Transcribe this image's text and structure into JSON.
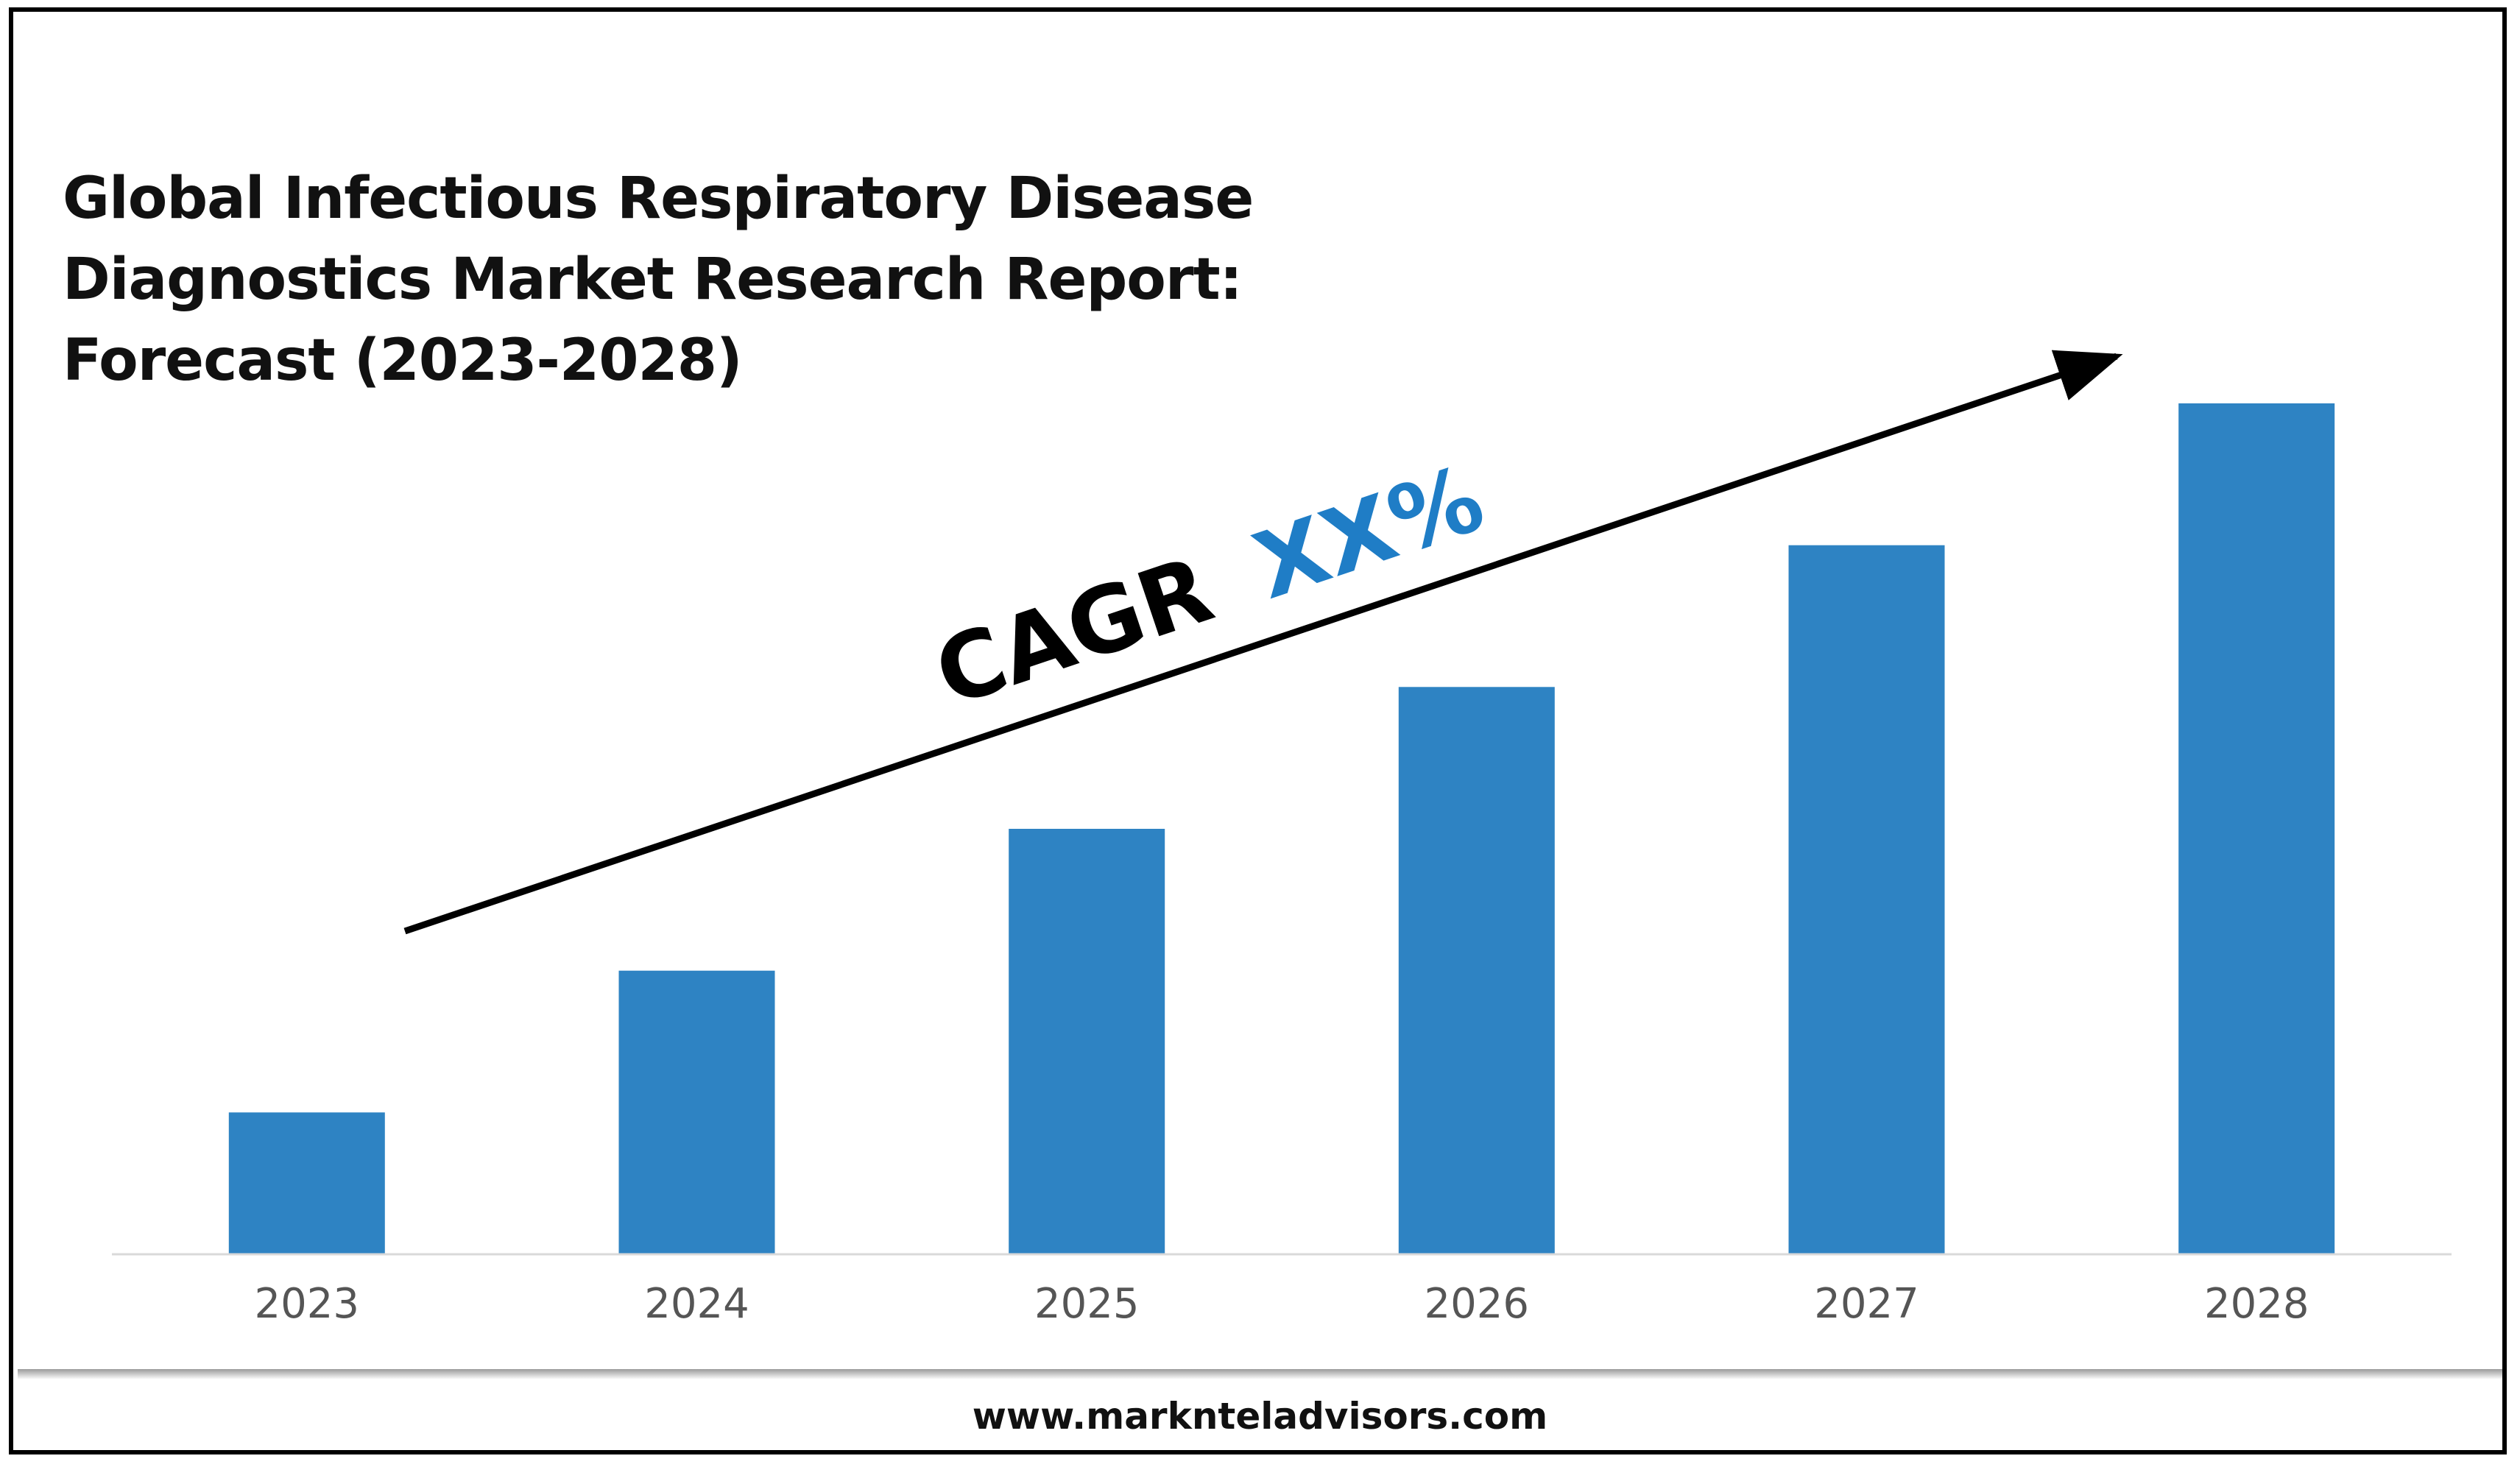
{
  "chart_data": {
    "type": "bar",
    "title": "Global Infectious Respiratory Disease Diagnostics Market Research Report: Forecast (2023-2028)",
    "title_lines": [
      "Global Infectious Respiratory Disease",
      "Diagnostics Market Research Report:",
      "Forecast (2023-2028)"
    ],
    "categories": [
      "2023",
      "2024",
      "2025",
      "2026",
      "2027",
      "2028"
    ],
    "values": [
      1,
      2,
      3,
      4,
      5,
      6
    ],
    "ylim": [
      0,
      6
    ],
    "xlabel": "",
    "ylabel": "",
    "grid": false,
    "bar_color": "#2E83C3",
    "annotation": {
      "prefix": "CAGR",
      "value": "XX%",
      "prefix_color": "#000000",
      "value_color": "#1F7DC6"
    }
  },
  "footer": {
    "url": "www.marknteladvisors.com"
  }
}
